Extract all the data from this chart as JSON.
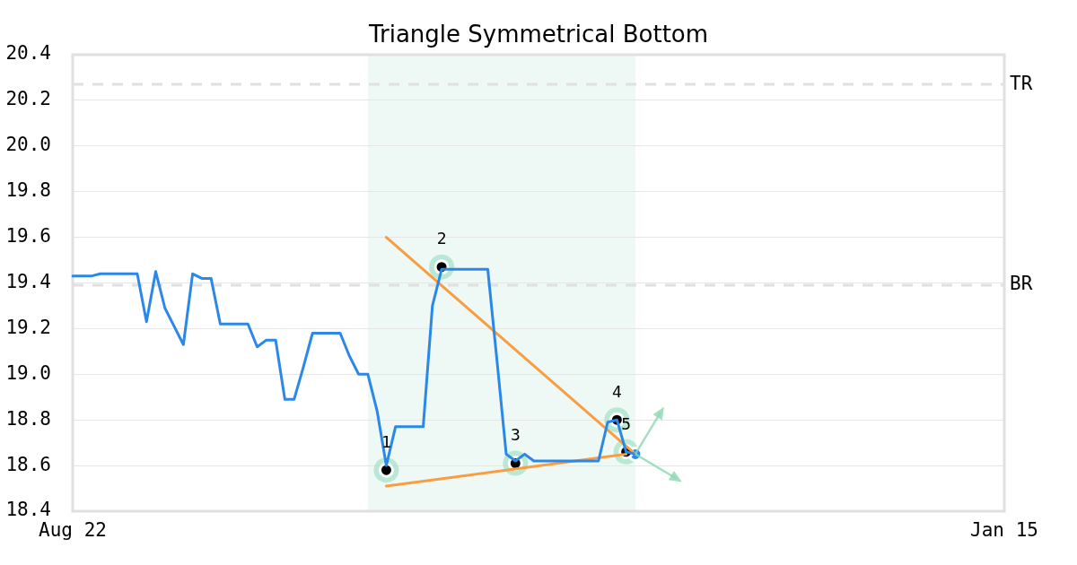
{
  "chart_data": {
    "type": "line",
    "title": "Triangle Symmetrical Bottom",
    "categories": [
      "Aug 22",
      null,
      null,
      null,
      null,
      null,
      null,
      null,
      null,
      null,
      null,
      null,
      null,
      null,
      null,
      null,
      null,
      null,
      null,
      null,
      null,
      null,
      null,
      null,
      null,
      null,
      null,
      null,
      null,
      null,
      null,
      null,
      null,
      null,
      null,
      null,
      null,
      null,
      null,
      null,
      null,
      null,
      null,
      null,
      null,
      null,
      null,
      null,
      null,
      null,
      null,
      null,
      null,
      null,
      null,
      null,
      null,
      null,
      null,
      null,
      null,
      null,
      null,
      null,
      null,
      null,
      null,
      null,
      null,
      null,
      null,
      null,
      null,
      null,
      null,
      null,
      null,
      null,
      null,
      null,
      null,
      null,
      null,
      null,
      null,
      null,
      null,
      null,
      null,
      null,
      null,
      null,
      null,
      null,
      null,
      null,
      null,
      null,
      null,
      null,
      null,
      "Jan 15"
    ],
    "ylim": [
      18.4,
      20.4
    ],
    "yticks": [
      18.4,
      18.6,
      18.8,
      {
        "value": 19,
        "label": "19.0"
      },
      19.2,
      19.4,
      19.6,
      19.8,
      {
        "value": 20,
        "label": "20.0"
      },
      20.2,
      20.4
    ],
    "grid": "y",
    "series": [
      {
        "color": "#2b87e8",
        "marker": "none",
        "values": [
          19.43,
          19.43,
          19.43,
          19.44,
          19.44,
          19.44,
          19.44,
          19.44,
          19.23,
          19.45,
          19.29,
          19.21,
          19.13,
          19.44,
          19.42,
          19.42,
          19.22,
          19.22,
          19.22,
          19.22,
          19.12,
          19.15,
          19.15,
          18.89,
          18.89,
          19.03,
          19.18,
          19.18,
          19.18,
          19.18,
          19.08,
          19.0,
          19.0,
          18.84,
          18.6,
          18.77,
          18.77,
          18.77,
          18.77,
          19.3,
          19.46,
          19.46,
          19.46,
          19.46,
          19.46,
          19.46,
          19.06,
          18.65,
          18.62,
          18.65,
          18.62,
          18.62,
          18.62,
          18.62,
          18.62,
          18.62,
          18.62,
          18.62,
          18.79,
          18.8,
          18.66,
          18.65,
          null,
          null,
          null,
          null,
          null,
          null,
          null,
          null,
          null,
          null,
          null,
          null,
          null,
          null,
          null,
          null,
          null,
          null,
          null,
          null,
          null,
          null,
          null,
          null,
          null,
          null,
          null,
          null,
          null,
          null,
          null,
          null,
          null,
          null,
          null,
          null,
          null,
          null,
          null,
          null
        ]
      },
      {
        "color": "#f89d42",
        "marker": "none",
        "values": [
          null,
          null,
          null,
          null,
          null,
          null,
          null,
          null,
          null,
          null,
          null,
          null,
          null,
          null,
          null,
          null,
          null,
          null,
          null,
          null,
          null,
          null,
          null,
          null,
          null,
          null,
          null,
          null,
          null,
          null,
          null,
          null,
          null,
          null,
          19.6,
          null,
          null,
          null,
          null,
          null,
          null,
          null,
          null,
          null,
          null,
          null,
          null,
          null,
          null,
          null,
          null,
          null,
          null,
          null,
          null,
          null,
          null,
          null,
          null,
          null,
          null,
          18.65,
          null,
          null,
          null,
          null,
          null,
          null,
          null,
          null,
          null,
          null,
          null,
          null,
          null,
          null,
          null,
          null,
          null,
          null,
          null,
          null,
          null,
          null,
          null,
          null,
          null,
          null,
          null,
          null,
          null,
          null,
          null,
          null,
          null,
          null,
          null,
          null,
          null,
          null,
          null,
          null
        ]
      },
      {
        "color": "#f89d42",
        "marker": "none",
        "values": [
          null,
          null,
          null,
          null,
          null,
          null,
          null,
          null,
          null,
          null,
          null,
          null,
          null,
          null,
          null,
          null,
          null,
          null,
          null,
          null,
          null,
          null,
          null,
          null,
          null,
          null,
          null,
          null,
          null,
          null,
          null,
          null,
          null,
          null,
          18.51,
          null,
          null,
          null,
          null,
          null,
          null,
          null,
          null,
          null,
          null,
          null,
          null,
          null,
          null,
          null,
          null,
          null,
          null,
          null,
          null,
          null,
          null,
          null,
          null,
          null,
          18.65,
          null,
          null,
          null,
          null,
          null,
          null,
          null,
          null,
          null,
          null,
          null,
          null,
          null,
          null,
          null,
          null,
          null,
          null,
          null,
          null,
          null,
          null,
          null,
          null,
          null,
          null,
          null,
          null,
          null,
          null,
          null,
          null,
          null,
          null,
          null,
          null,
          null,
          null,
          null,
          null,
          null
        ]
      },
      {
        "type": "scatter",
        "color": "#000000",
        "marker": "circle",
        "values": [
          null,
          null,
          null,
          null,
          null,
          null,
          null,
          null,
          null,
          null,
          null,
          null,
          null,
          null,
          null,
          null,
          null,
          null,
          null,
          null,
          null,
          null,
          null,
          null,
          null,
          null,
          null,
          null,
          null,
          null,
          null,
          null,
          null,
          null,
          18.58,
          null,
          null,
          null,
          null,
          null,
          19.47,
          null,
          null,
          null,
          null,
          null,
          null,
          null,
          18.61,
          null,
          null,
          null,
          null,
          null,
          null,
          null,
          null,
          null,
          null,
          18.8,
          18.66,
          null,
          null,
          null,
          null,
          null,
          null,
          null,
          null,
          null,
          null,
          null,
          null,
          null,
          null,
          null,
          null,
          null,
          null,
          null,
          null,
          null,
          null,
          null,
          null,
          null,
          null,
          null,
          null,
          null,
          null,
          null,
          null,
          null,
          null,
          null,
          null,
          null,
          null,
          null,
          null,
          null
        ]
      },
      {
        "type": "scatter",
        "color": "#2b87e8",
        "marker": "circle",
        "values": [
          null,
          null,
          null,
          null,
          null,
          null,
          null,
          null,
          null,
          null,
          null,
          null,
          null,
          null,
          null,
          null,
          null,
          null,
          null,
          null,
          null,
          null,
          null,
          null,
          null,
          null,
          null,
          null,
          null,
          null,
          null,
          null,
          null,
          null,
          null,
          null,
          null,
          null,
          null,
          null,
          null,
          null,
          null,
          null,
          null,
          null,
          null,
          null,
          null,
          null,
          null,
          null,
          null,
          null,
          null,
          null,
          null,
          null,
          null,
          null,
          null,
          18.65,
          null,
          null,
          null,
          null,
          null,
          null,
          null,
          null,
          null,
          null,
          null,
          null,
          null,
          null,
          null,
          null,
          null,
          null,
          null,
          null,
          null,
          null,
          null,
          null,
          null,
          null,
          null,
          null,
          null,
          null,
          null,
          null,
          null,
          null,
          null,
          null,
          null,
          null,
          null,
          null
        ]
      }
    ],
    "annotations": [
      {
        "text": "1",
        "y": 18.58
      },
      {
        "text": "2",
        "y": 19.47
      },
      {
        "text": "3",
        "y": 18.61
      },
      {
        "text": "4",
        "y": 18.8
      },
      {
        "text": "5",
        "y": 18.66
      }
    ],
    "ref_lines": [
      {
        "axis": "y",
        "value": 20.27,
        "label": "TR",
        "color": "#e0e0e0",
        "line_style": "dashed"
      },
      {
        "axis": "y",
        "value": 19.39,
        "label": "BR",
        "color": "#e0e0e0",
        "line_style": "dashed"
      }
    ]
  }
}
